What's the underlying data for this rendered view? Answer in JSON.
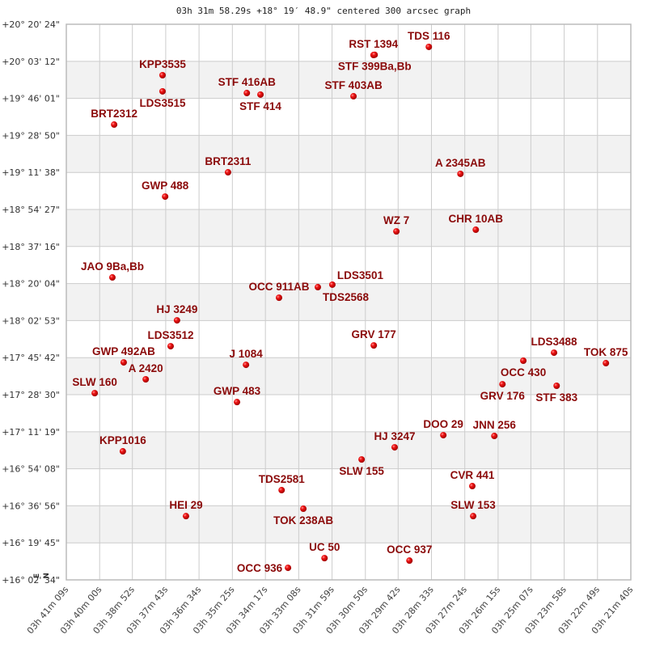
{
  "chart_data": {
    "type": "scatter",
    "title": "03h 31m 58.29s +18° 19′ 48.9\" centered 300 arcsec graph",
    "xlabel": "",
    "ylabel": "",
    "x_unit": "RA minutes past 03h",
    "y_unit": "Dec degrees",
    "xlim": [
      41.15,
      21.67
    ],
    "ylim": [
      16.0428,
      20.34
    ],
    "x_reversed": true,
    "grid": true,
    "alternating_row_bands": true,
    "compass": {
      "north": "N",
      "east": "E"
    },
    "colors": {
      "point": "#dd0000",
      "label": "#8b0a0a",
      "band": "#f2f2f2",
      "grid": "#cccccc"
    },
    "x_ticks": [
      {
        "value": 41.15,
        "label": "03h 41m 09s"
      },
      {
        "value": 40.0,
        "label": "03h 40m 00s"
      },
      {
        "value": 38.87,
        "label": "03h 38m 52s"
      },
      {
        "value": 37.72,
        "label": "03h 37m 43s"
      },
      {
        "value": 36.57,
        "label": "03h 36m 34s"
      },
      {
        "value": 35.42,
        "label": "03h 35m 25s"
      },
      {
        "value": 34.28,
        "label": "03h 34m 17s"
      },
      {
        "value": 33.13,
        "label": "03h 33m 08s"
      },
      {
        "value": 31.98,
        "label": "03h 31m 59s"
      },
      {
        "value": 30.83,
        "label": "03h 30m 50s"
      },
      {
        "value": 29.7,
        "label": "03h 29m 42s"
      },
      {
        "value": 28.55,
        "label": "03h 28m 33s"
      },
      {
        "value": 27.4,
        "label": "03h 27m 24s"
      },
      {
        "value": 26.25,
        "label": "03h 26m 15s"
      },
      {
        "value": 25.12,
        "label": "03h 25m 07s"
      },
      {
        "value": 23.97,
        "label": "03h 23m 58s"
      },
      {
        "value": 22.82,
        "label": "03h 22m 49s"
      },
      {
        "value": 21.67,
        "label": "03h 21m 40s"
      }
    ],
    "y_ticks": [
      {
        "value": 20.34,
        "label": "+20° 20' 24\""
      },
      {
        "value": 20.0533,
        "label": "+20° 03' 12\""
      },
      {
        "value": 19.7669,
        "label": "+19° 46' 01\""
      },
      {
        "value": 19.4806,
        "label": "+19° 28' 50\""
      },
      {
        "value": 19.1939,
        "label": "+19° 11' 38\""
      },
      {
        "value": 18.9075,
        "label": "+18° 54' 27\""
      },
      {
        "value": 18.6211,
        "label": "+18° 37' 16\""
      },
      {
        "value": 18.3344,
        "label": "+18° 20' 04\""
      },
      {
        "value": 18.0481,
        "label": "+18° 02' 53\""
      },
      {
        "value": 17.7617,
        "label": "+17° 45' 42\""
      },
      {
        "value": 17.475,
        "label": "+17° 28' 30\""
      },
      {
        "value": 17.1886,
        "label": "+17° 11' 19\""
      },
      {
        "value": 16.9022,
        "label": "+16° 54' 08\""
      },
      {
        "value": 16.6156,
        "label": "+16° 36' 56\""
      },
      {
        "value": 16.3292,
        "label": "+16° 19' 45\""
      },
      {
        "value": 16.0428,
        "label": "+16° 02' 34\""
      }
    ],
    "points": [
      {
        "name": "KPP3535",
        "ra_min": 37.83,
        "dec": 19.946
      },
      {
        "name": "LDS3515",
        "ra_min": 37.83,
        "dec": 19.821
      },
      {
        "name": "STF 416AB",
        "ra_min": 34.92,
        "dec": 19.808
      },
      {
        "name": "STF 414",
        "ra_min": 34.45,
        "dec": 19.796
      },
      {
        "name": "STF 403AB",
        "ra_min": 31.24,
        "dec": 19.783
      },
      {
        "name": "RST 1394",
        "ra_min": 30.55,
        "dec": 20.102
      },
      {
        "name": "STF 399Ba,Bb",
        "ra_min": 30.51,
        "dec": 20.104
      },
      {
        "name": "TDS 116",
        "ra_min": 28.64,
        "dec": 20.165
      },
      {
        "name": "BRT2312",
        "ra_min": 39.5,
        "dec": 19.564
      },
      {
        "name": "BRT2311",
        "ra_min": 35.57,
        "dec": 19.195
      },
      {
        "name": "A  2345AB",
        "ra_min": 27.55,
        "dec": 19.183
      },
      {
        "name": "GWP 488",
        "ra_min": 37.74,
        "dec": 19.007
      },
      {
        "name": "WZ    7",
        "ra_min": 29.76,
        "dec": 18.738
      },
      {
        "name": "CHR  10AB",
        "ra_min": 27.02,
        "dec": 18.751
      },
      {
        "name": "JAO   9Ba,Bb",
        "ra_min": 39.56,
        "dec": 18.382
      },
      {
        "name": "OCC 911AB",
        "ra_min": 33.81,
        "dec": 18.225
      },
      {
        "name": "TDS2568",
        "ra_min": 32.47,
        "dec": 18.307
      },
      {
        "name": "LDS3501",
        "ra_min": 31.97,
        "dec": 18.326
      },
      {
        "name": "HJ 3249",
        "ra_min": 37.33,
        "dec": 18.05
      },
      {
        "name": "LDS3512",
        "ra_min": 37.55,
        "dec": 17.85
      },
      {
        "name": "GRV 177",
        "ra_min": 30.54,
        "dec": 17.856
      },
      {
        "name": "GWP 492AB",
        "ra_min": 39.17,
        "dec": 17.725
      },
      {
        "name": "A  2420",
        "ra_min": 38.41,
        "dec": 17.594
      },
      {
        "name": "J  1084",
        "ra_min": 34.95,
        "dec": 17.706
      },
      {
        "name": "SLW 160",
        "ra_min": 40.17,
        "dec": 17.487
      },
      {
        "name": "GWP 483",
        "ra_min": 35.26,
        "dec": 17.418
      },
      {
        "name": "LDS3488",
        "ra_min": 24.32,
        "dec": 17.8
      },
      {
        "name": "OCC 430",
        "ra_min": 25.38,
        "dec": 17.738
      },
      {
        "name": "TOK 875",
        "ra_min": 22.53,
        "dec": 17.719
      },
      {
        "name": "GRV 176",
        "ra_min": 26.1,
        "dec": 17.556
      },
      {
        "name": "STF 383",
        "ra_min": 24.23,
        "dec": 17.544
      },
      {
        "name": "DOO  29",
        "ra_min": 28.14,
        "dec": 17.162
      },
      {
        "name": "JNN 256",
        "ra_min": 26.38,
        "dec": 17.156
      },
      {
        "name": "HJ 3247",
        "ra_min": 29.82,
        "dec": 17.068
      },
      {
        "name": "SLW 155",
        "ra_min": 30.96,
        "dec": 16.974
      },
      {
        "name": "KPP1016",
        "ra_min": 39.2,
        "dec": 17.037
      },
      {
        "name": "CVR 441",
        "ra_min": 27.14,
        "dec": 16.768
      },
      {
        "name": "TDS2581",
        "ra_min": 33.72,
        "dec": 16.737
      },
      {
        "name": "TOK 238AB",
        "ra_min": 32.97,
        "dec": 16.593
      },
      {
        "name": "SLW 153",
        "ra_min": 27.11,
        "dec": 16.536
      },
      {
        "name": "HEI  29",
        "ra_min": 37.02,
        "dec": 16.536
      },
      {
        "name": "UC   50",
        "ra_min": 32.24,
        "dec": 16.211
      },
      {
        "name": "OCC 936",
        "ra_min": 33.5,
        "dec": 16.136
      },
      {
        "name": "OCC 937",
        "ra_min": 29.31,
        "dec": 16.192
      }
    ]
  }
}
